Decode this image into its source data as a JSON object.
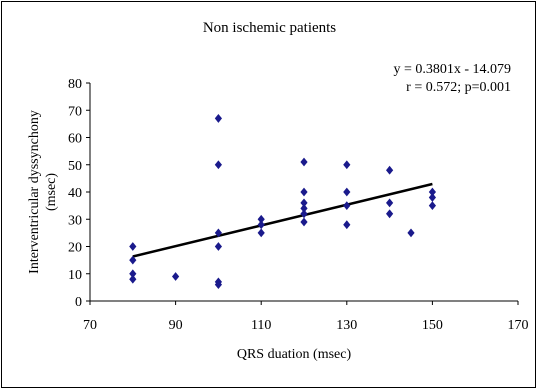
{
  "chart_data": {
    "type": "scatter",
    "title": "Non ischemic patients",
    "xlabel": "QRS duation (msec)",
    "ylabel": "Interventricular dyssynchony (msec)",
    "ylabel_lines": [
      "Interventricular dyssynchony",
      "(msec)"
    ],
    "xlim": [
      70,
      170
    ],
    "ylim": [
      0,
      80
    ],
    "xticks": [
      70,
      90,
      110,
      130,
      150,
      170
    ],
    "yticks": [
      0,
      10,
      20,
      30,
      40,
      50,
      60,
      70,
      80
    ],
    "grid": false,
    "marker_color": "#1a1a8c",
    "line_color": "#000000",
    "points": [
      {
        "x": 80,
        "y": 20
      },
      {
        "x": 80,
        "y": 15
      },
      {
        "x": 80,
        "y": 10
      },
      {
        "x": 80,
        "y": 8
      },
      {
        "x": 90,
        "y": 9
      },
      {
        "x": 100,
        "y": 67
      },
      {
        "x": 100,
        "y": 50
      },
      {
        "x": 100,
        "y": 25
      },
      {
        "x": 100,
        "y": 20
      },
      {
        "x": 100,
        "y": 7
      },
      {
        "x": 100,
        "y": 6
      },
      {
        "x": 110,
        "y": 30
      },
      {
        "x": 110,
        "y": 28
      },
      {
        "x": 110,
        "y": 25
      },
      {
        "x": 120,
        "y": 51
      },
      {
        "x": 120,
        "y": 40
      },
      {
        "x": 120,
        "y": 36
      },
      {
        "x": 120,
        "y": 34
      },
      {
        "x": 120,
        "y": 32
      },
      {
        "x": 120,
        "y": 29
      },
      {
        "x": 130,
        "y": 50
      },
      {
        "x": 130,
        "y": 40
      },
      {
        "x": 130,
        "y": 35
      },
      {
        "x": 130,
        "y": 28
      },
      {
        "x": 140,
        "y": 48
      },
      {
        "x": 140,
        "y": 36
      },
      {
        "x": 140,
        "y": 32
      },
      {
        "x": 145,
        "y": 25
      },
      {
        "x": 150,
        "y": 40
      },
      {
        "x": 150,
        "y": 38
      },
      {
        "x": 150,
        "y": 35
      }
    ],
    "trendline": {
      "slope": 0.3801,
      "intercept": -14.079,
      "x_range": [
        80,
        150
      ]
    },
    "annotations": {
      "equation": "y = 0.3801x - 14.079",
      "stats": "r = 0.572; p=0.001"
    }
  }
}
